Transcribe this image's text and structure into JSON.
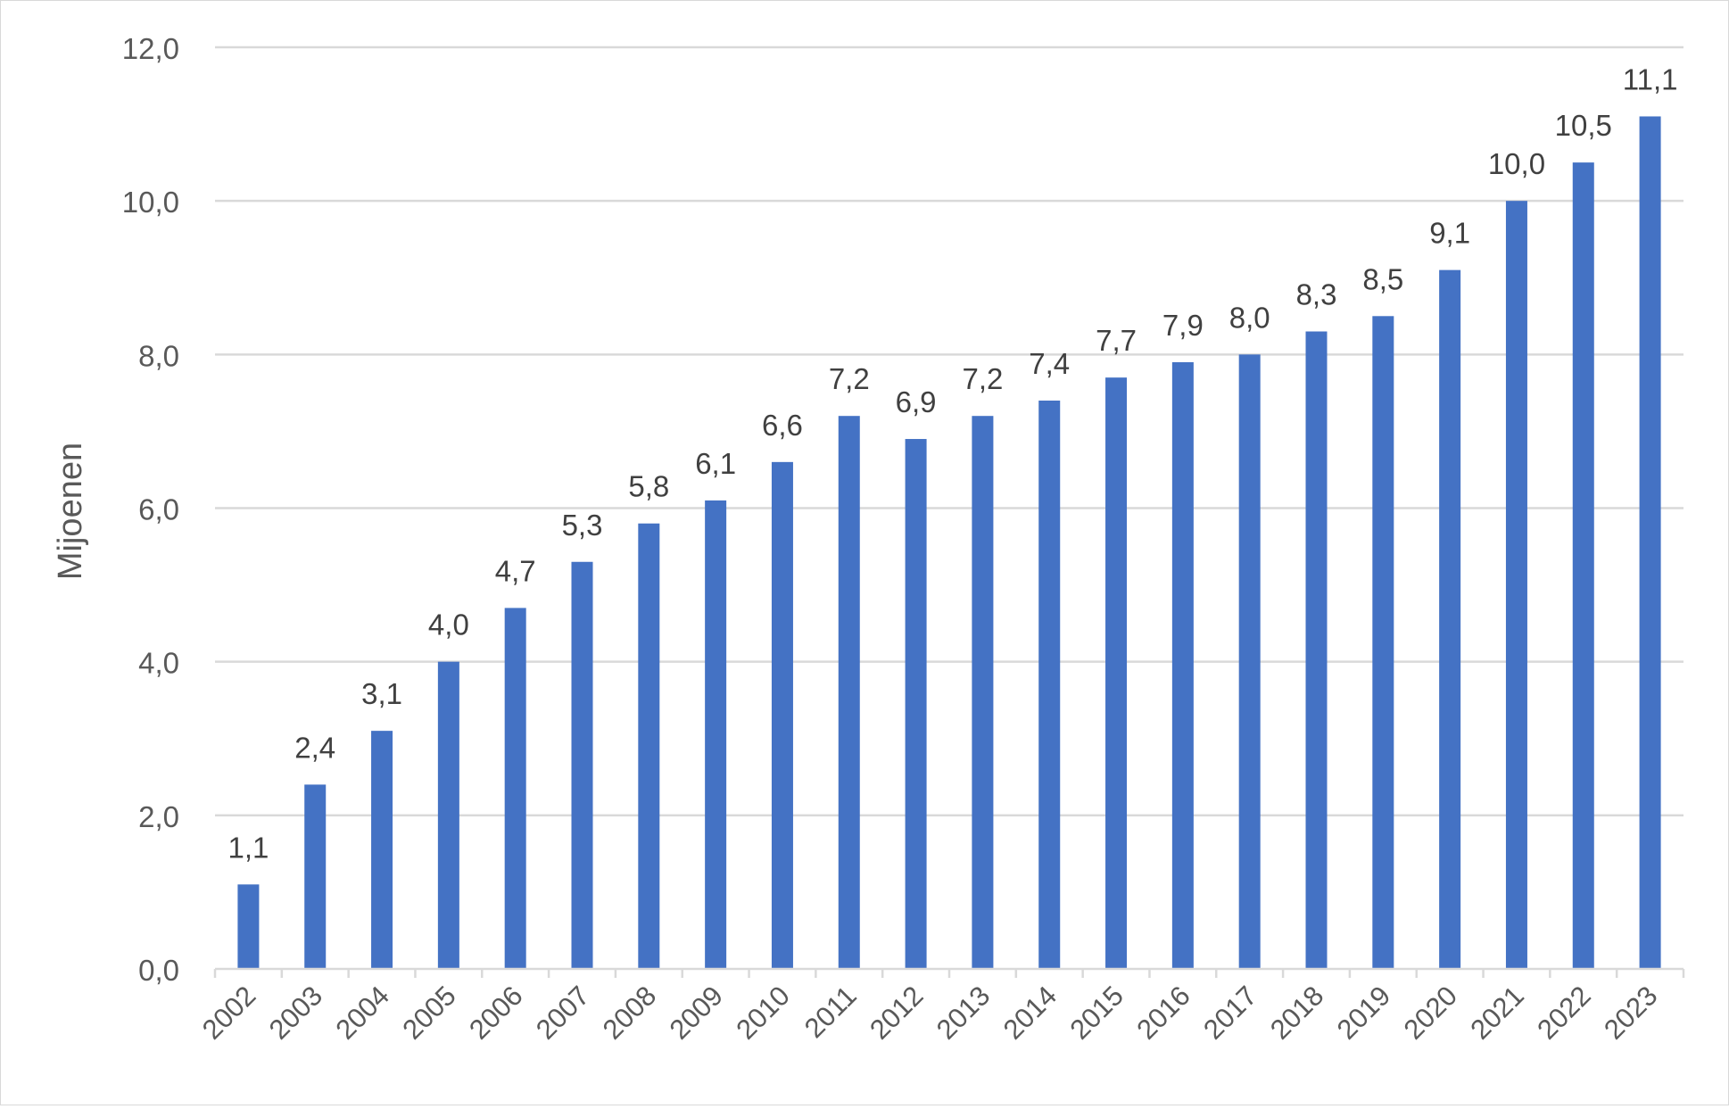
{
  "chart_data": {
    "type": "bar",
    "title": "",
    "xlabel": "",
    "ylabel": "Mijoenen",
    "ylim": [
      0,
      12
    ],
    "yticks": [
      "0,0",
      "2,0",
      "4,0",
      "6,0",
      "8,0",
      "10,0",
      "12,0"
    ],
    "grid": true,
    "legend": "none",
    "categories": [
      "2002",
      "2003",
      "2004",
      "2005",
      "2006",
      "2007",
      "2008",
      "2009",
      "2010",
      "2011",
      "2012",
      "2013",
      "2014",
      "2015",
      "2016",
      "2017",
      "2018",
      "2019",
      "2020",
      "2021",
      "2022",
      "2023"
    ],
    "values": [
      1.1,
      2.4,
      3.1,
      4.0,
      4.7,
      5.3,
      5.8,
      6.1,
      6.6,
      7.2,
      6.9,
      7.2,
      7.4,
      7.7,
      7.9,
      8.0,
      8.3,
      8.5,
      9.1,
      10.0,
      10.5,
      11.1
    ],
    "data_labels": [
      "1,1",
      "2,4",
      "3,1",
      "4,0",
      "4,7",
      "5,3",
      "5,8",
      "6,1",
      "6,6",
      "7,2",
      "6,9",
      "7,2",
      "7,4",
      "7,7",
      "7,9",
      "8,0",
      "8,3",
      "8,5",
      "9,1",
      "10,0",
      "10,5",
      "11,1"
    ],
    "colors": {
      "bar": "#4472c4",
      "grid": "#d9d9d9",
      "axis_text": "#595959",
      "label_text": "#404040"
    }
  }
}
